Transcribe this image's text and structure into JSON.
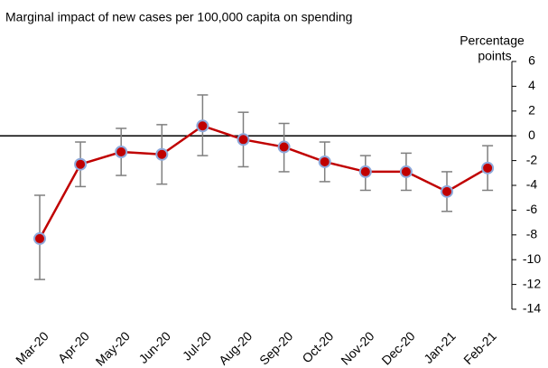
{
  "chart_data": {
    "type": "line",
    "subtitle": "Marginal impact of new cases per 100,000 capita on spending",
    "y_label": [
      "Percentage",
      "points"
    ],
    "categories": [
      "Mar-20",
      "Apr-20",
      "May-20",
      "Jun-20",
      "Jul-20",
      "Aug-20",
      "Sep-20",
      "Oct-20",
      "Nov-20",
      "Dec-20",
      "Jan-21",
      "Feb-21"
    ],
    "series": [
      {
        "color": "#c00000",
        "marker_edge": "#8ea9db",
        "error_color": "#7f7f7f",
        "values": [
          -8.3,
          -2.3,
          -1.3,
          -1.5,
          0.8,
          -0.3,
          -0.9,
          -2.1,
          -2.9,
          -2.9,
          -4.5,
          -2.6
        ],
        "upper": [
          -4.8,
          -0.5,
          0.6,
          0.9,
          3.3,
          1.9,
          1.0,
          -0.5,
          -1.6,
          -1.4,
          -2.9,
          -0.8
        ],
        "lower": [
          -11.6,
          -4.1,
          -3.2,
          -3.9,
          -1.6,
          -2.5,
          -2.9,
          -3.7,
          -4.4,
          -4.4,
          -6.1,
          -4.4
        ]
      }
    ],
    "ylim": [
      -14,
      6
    ],
    "yticks": [
      -14,
      -12,
      -10,
      -8,
      -6,
      -4,
      -2,
      0,
      2,
      4,
      6
    ],
    "y_axis_side": "right",
    "zero_line": true
  }
}
